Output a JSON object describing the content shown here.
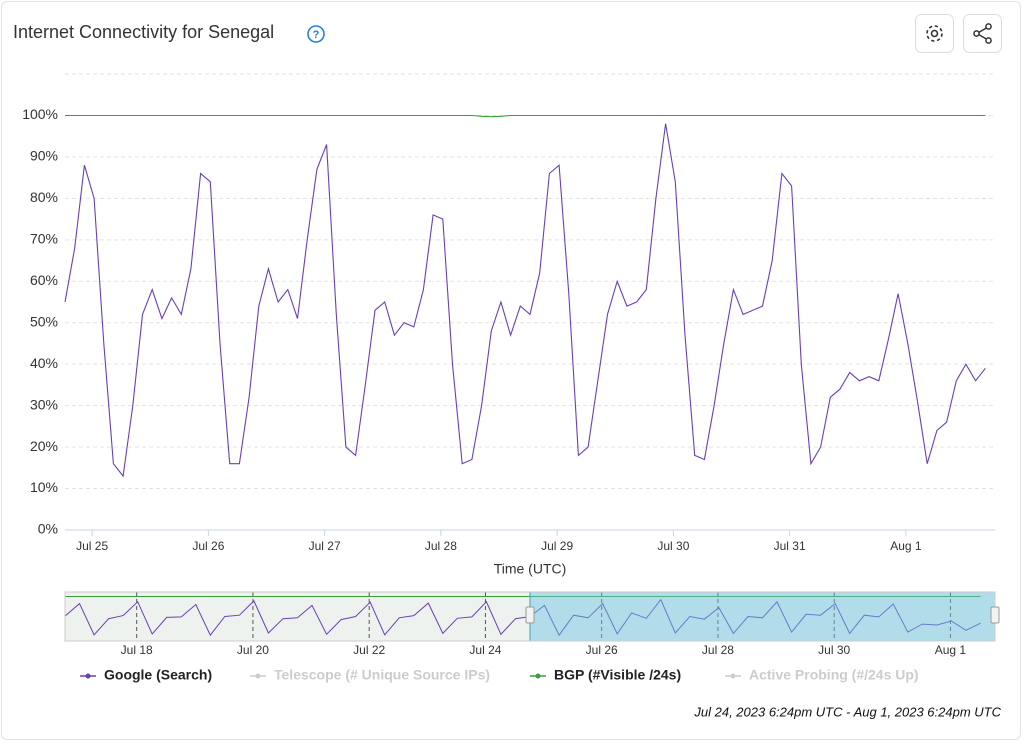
{
  "chart_data": {
    "type": "line",
    "title": "Internet Connectivity for Senegal",
    "x_label": "Time (UTC)",
    "range_label": "Jul 24, 2023 6:24pm UTC - Aug 1, 2023 6:24pm UTC",
    "x": [
      "2023-07-24T18:24",
      "2023-07-24T20:24",
      "2023-07-24T22:24",
      "2023-07-25T00:24",
      "2023-07-25T02:24",
      "2023-07-25T04:24",
      "2023-07-25T06:24",
      "2023-07-25T08:24",
      "2023-07-25T10:24",
      "2023-07-25T12:24",
      "2023-07-25T14:24",
      "2023-07-25T16:24",
      "2023-07-25T18:24",
      "2023-07-25T20:24",
      "2023-07-25T22:24",
      "2023-07-26T00:24",
      "2023-07-26T02:24",
      "2023-07-26T04:24",
      "2023-07-26T06:24",
      "2023-07-26T08:24",
      "2023-07-26T10:24",
      "2023-07-26T12:24",
      "2023-07-26T14:24",
      "2023-07-26T16:24",
      "2023-07-26T18:24",
      "2023-07-26T20:24",
      "2023-07-26T22:24",
      "2023-07-27T00:24",
      "2023-07-27T02:24",
      "2023-07-27T04:24",
      "2023-07-27T06:24",
      "2023-07-27T08:24",
      "2023-07-27T10:24",
      "2023-07-27T12:24",
      "2023-07-27T14:24",
      "2023-07-27T16:24",
      "2023-07-27T18:24",
      "2023-07-27T20:24",
      "2023-07-27T22:24",
      "2023-07-28T00:24",
      "2023-07-28T02:24",
      "2023-07-28T04:24",
      "2023-07-28T06:24",
      "2023-07-28T08:24",
      "2023-07-28T10:24",
      "2023-07-28T12:24",
      "2023-07-28T14:24",
      "2023-07-28T16:24",
      "2023-07-28T18:24",
      "2023-07-28T20:24",
      "2023-07-28T22:24",
      "2023-07-29T00:24",
      "2023-07-29T02:24",
      "2023-07-29T04:24",
      "2023-07-29T06:24",
      "2023-07-29T08:24",
      "2023-07-29T10:24",
      "2023-07-29T12:24",
      "2023-07-29T14:24",
      "2023-07-29T16:24",
      "2023-07-29T18:24",
      "2023-07-29T20:24",
      "2023-07-29T22:24",
      "2023-07-30T00:24",
      "2023-07-30T02:24",
      "2023-07-30T04:24",
      "2023-07-30T06:24",
      "2023-07-30T08:24",
      "2023-07-30T10:24",
      "2023-07-30T12:24",
      "2023-07-30T14:24",
      "2023-07-30T16:24",
      "2023-07-30T18:24",
      "2023-07-30T20:24",
      "2023-07-30T22:24",
      "2023-07-31T00:24",
      "2023-07-31T02:24",
      "2023-07-31T04:24",
      "2023-07-31T06:24",
      "2023-07-31T08:24",
      "2023-07-31T10:24",
      "2023-07-31T12:24",
      "2023-07-31T14:24",
      "2023-07-31T16:24",
      "2023-07-31T18:24",
      "2023-07-31T20:24",
      "2023-07-31T22:24",
      "2023-08-01T00:24",
      "2023-08-01T02:24",
      "2023-08-01T04:24",
      "2023-08-01T06:24",
      "2023-08-01T08:24",
      "2023-08-01T10:24",
      "2023-08-01T12:24",
      "2023-08-01T14:24",
      "2023-08-01T16:24"
    ],
    "xlim": [
      "2023-07-24T18:24",
      "2023-08-01T18:24"
    ],
    "xticks": [
      {
        "value": "2023-07-25T00:00",
        "label": "Jul 25"
      },
      {
        "value": "2023-07-26T00:00",
        "label": "Jul 26"
      },
      {
        "value": "2023-07-27T00:00",
        "label": "Jul 27"
      },
      {
        "value": "2023-07-28T00:00",
        "label": "Jul 28"
      },
      {
        "value": "2023-07-29T00:00",
        "label": "Jul 29"
      },
      {
        "value": "2023-07-30T00:00",
        "label": "Jul 30"
      },
      {
        "value": "2023-07-31T00:00",
        "label": "Jul 31"
      },
      {
        "value": "2023-08-01T00:00",
        "label": "Aug 1"
      }
    ],
    "ylim": [
      0,
      110
    ],
    "yticks": [
      {
        "value": 0,
        "label": "0%"
      },
      {
        "value": 10,
        "label": "10%"
      },
      {
        "value": 20,
        "label": "20%"
      },
      {
        "value": 30,
        "label": "30%"
      },
      {
        "value": 40,
        "label": "40%"
      },
      {
        "value": 50,
        "label": "50%"
      },
      {
        "value": 60,
        "label": "60%"
      },
      {
        "value": 70,
        "label": "70%"
      },
      {
        "value": 80,
        "label": "80%"
      },
      {
        "value": 90,
        "label": "90%"
      },
      {
        "value": 100,
        "label": "100%"
      }
    ],
    "grid": true,
    "series": [
      {
        "name": "Google (Search)",
        "color": "#6a3fb5",
        "values": [
          55,
          68,
          88,
          80,
          45,
          16,
          13,
          30,
          52,
          58,
          51,
          56,
          52,
          63,
          86,
          84,
          45,
          16,
          16,
          32,
          54,
          63,
          55,
          58,
          51,
          70,
          87,
          93,
          52,
          20,
          18,
          35,
          53,
          55,
          47,
          50,
          49,
          58,
          76,
          75,
          40,
          16,
          17,
          30,
          48,
          55,
          47,
          54,
          52,
          62,
          86,
          88,
          57,
          18,
          20,
          36,
          52,
          60,
          54,
          55,
          58,
          80,
          98,
          84,
          47,
          18,
          17,
          30,
          45,
          58,
          52,
          53,
          54,
          65,
          86,
          83,
          40,
          16,
          20,
          32,
          34,
          38,
          36,
          37,
          36,
          46,
          57,
          45,
          31,
          16,
          24,
          26,
          36,
          40,
          36,
          39
        ]
      },
      {
        "name": "Telescope (# Unique Source IPs)",
        "color": "#cccccc",
        "visible": false
      },
      {
        "name": "BGP (#Visible /24s)",
        "color": "#3aa03a",
        "values": [
          100,
          100,
          100,
          100,
          100,
          100,
          100,
          100,
          100,
          100,
          100,
          100,
          100,
          100,
          100,
          100,
          100,
          100,
          100,
          100,
          100,
          100,
          100,
          100,
          100,
          100,
          100,
          100,
          100,
          100,
          100,
          100,
          100,
          100,
          100,
          100,
          100,
          100,
          100,
          100,
          100,
          100,
          100,
          99.8,
          99.7,
          99.8,
          100,
          100,
          100,
          100,
          100,
          100,
          100,
          100,
          100,
          100,
          100,
          100,
          100,
          100,
          100,
          100,
          100,
          100,
          100,
          100,
          100,
          100,
          100,
          100,
          100,
          100,
          100,
          100,
          100,
          100,
          100,
          100,
          100,
          100,
          100,
          100,
          100,
          100,
          100,
          100,
          100,
          100,
          100,
          100,
          100,
          100,
          100,
          100,
          100,
          100
        ]
      },
      {
        "name": "Active Probing (#/24s Up)",
        "color": "#cccccc",
        "visible": false
      }
    ],
    "navigator": {
      "x": [
        "2023-07-16T18:24",
        "2023-07-17T00:24",
        "2023-07-17T06:24",
        "2023-07-17T12:24",
        "2023-07-17T18:24",
        "2023-07-18T00:24",
        "2023-07-18T06:24",
        "2023-07-18T12:24",
        "2023-07-18T18:24",
        "2023-07-19T00:24",
        "2023-07-19T06:24",
        "2023-07-19T12:24",
        "2023-07-19T18:24",
        "2023-07-20T00:24",
        "2023-07-20T06:24",
        "2023-07-20T12:24",
        "2023-07-20T18:24",
        "2023-07-21T00:24",
        "2023-07-21T06:24",
        "2023-07-21T12:24",
        "2023-07-21T18:24",
        "2023-07-22T00:24",
        "2023-07-22T06:24",
        "2023-07-22T12:24",
        "2023-07-22T18:24",
        "2023-07-23T00:24",
        "2023-07-23T06:24",
        "2023-07-23T12:24",
        "2023-07-23T18:24",
        "2023-07-24T00:24",
        "2023-07-24T06:24",
        "2023-07-24T12:24",
        "2023-07-24T18:24",
        "2023-07-25T00:24",
        "2023-07-25T06:24",
        "2023-07-25T12:24",
        "2023-07-25T18:24",
        "2023-07-26T00:24",
        "2023-07-26T06:24",
        "2023-07-26T12:24",
        "2023-07-26T18:24",
        "2023-07-27T00:24",
        "2023-07-27T06:24",
        "2023-07-27T12:24",
        "2023-07-27T18:24",
        "2023-07-28T00:24",
        "2023-07-28T06:24",
        "2023-07-28T12:24",
        "2023-07-28T18:24",
        "2023-07-29T00:24",
        "2023-07-29T06:24",
        "2023-07-29T12:24",
        "2023-07-29T18:24",
        "2023-07-30T00:24",
        "2023-07-30T06:24",
        "2023-07-30T12:24",
        "2023-07-30T18:24",
        "2023-07-31T00:24",
        "2023-07-31T06:24",
        "2023-07-31T12:24",
        "2023-07-31T18:24",
        "2023-08-01T00:24",
        "2023-08-01T06:24",
        "2023-08-01T12:24"
      ],
      "xlim": [
        "2023-07-16T18:24",
        "2023-08-01T18:24"
      ],
      "xticks": [
        {
          "value": "2023-07-18T00:00",
          "label": "Jul 18"
        },
        {
          "value": "2023-07-20T00:00",
          "label": "Jul 20"
        },
        {
          "value": "2023-07-22T00:00",
          "label": "Jul 22"
        },
        {
          "value": "2023-07-24T00:00",
          "label": "Jul 24"
        },
        {
          "value": "2023-07-26T00:00",
          "label": "Jul 26"
        },
        {
          "value": "2023-07-28T00:00",
          "label": "Jul 28"
        },
        {
          "value": "2023-07-30T00:00",
          "label": "Jul 30"
        },
        {
          "value": "2023-08-01T00:00",
          "label": "Aug 1"
        }
      ],
      "ylim": [
        0,
        110
      ],
      "series": [
        {
          "color": "#6a3fb5",
          "values": [
            56,
            84,
            14,
            50,
            57,
            88,
            16,
            53,
            54,
            82,
            13,
            55,
            58,
            90,
            18,
            50,
            52,
            80,
            15,
            48,
            55,
            87,
            14,
            52,
            57,
            85,
            17,
            51,
            54,
            88,
            15,
            50,
            55,
            80,
            13,
            58,
            52,
            84,
            16,
            63,
            51,
            93,
            18,
            55,
            49,
            75,
            17,
            55,
            52,
            88,
            20,
            60,
            58,
            84,
            17,
            58,
            54,
            83,
            20,
            38,
            36,
            45,
            24,
            40
          ]
        },
        {
          "color": "#3aa03a",
          "values": [
            100,
            100,
            100,
            100,
            100,
            100,
            100,
            100,
            100,
            100,
            100,
            100,
            100,
            100,
            100,
            100,
            100,
            100,
            100,
            100,
            100,
            100,
            100,
            100,
            100,
            100,
            100,
            100,
            100,
            100,
            100,
            100,
            100,
            100,
            100,
            100,
            100,
            100,
            100,
            100,
            100,
            100,
            100,
            100,
            100,
            100,
            100,
            100,
            100,
            100,
            100,
            100,
            100,
            100,
            100,
            100,
            100,
            100,
            100,
            100,
            100,
            100,
            100,
            100
          ]
        }
      ]
    }
  }
}
